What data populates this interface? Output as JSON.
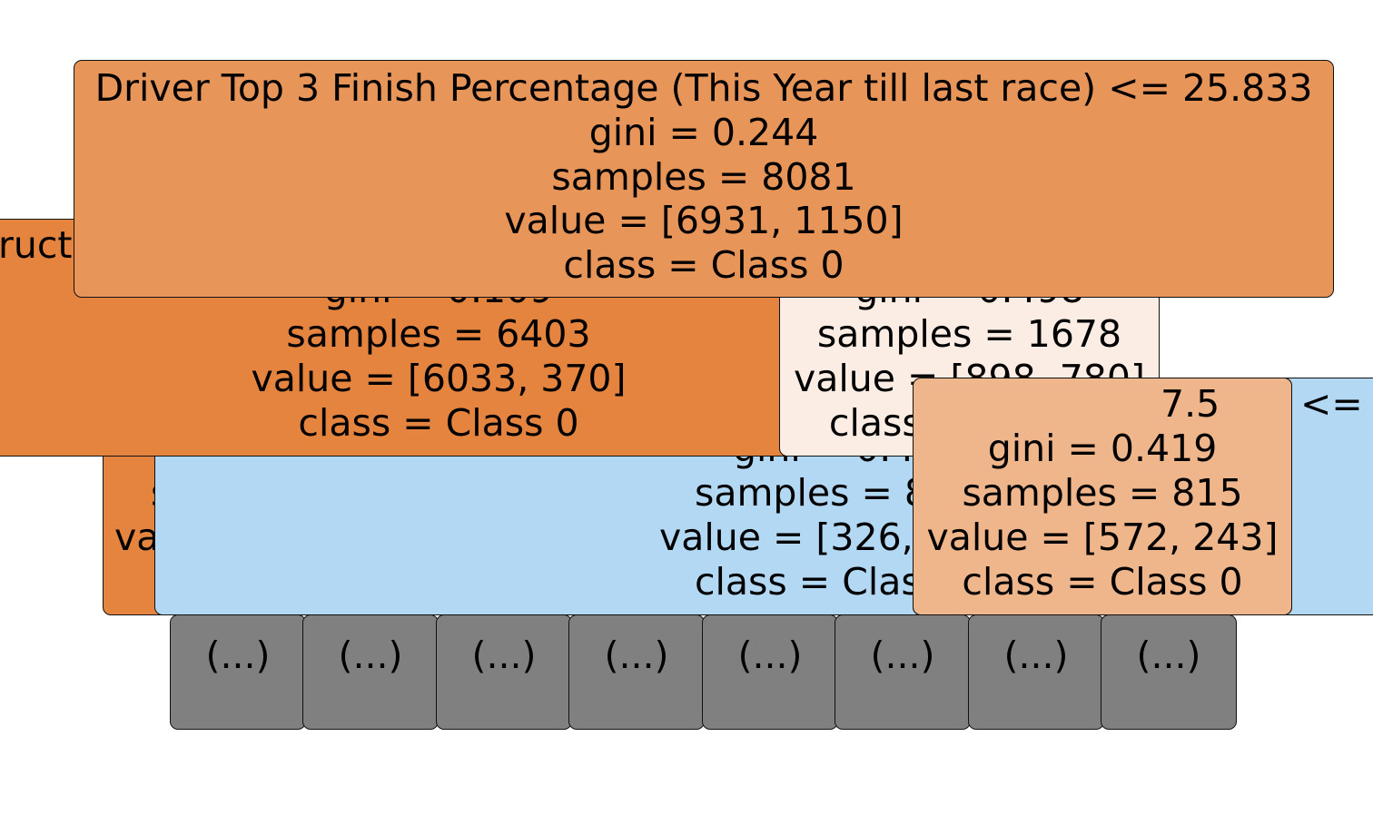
{
  "colors": {
    "root": "#e89559",
    "strong_class0": "#e5843f",
    "light_class0": "#fcede4",
    "mid_class0": "#f0b68b",
    "class1": "#b3d8f4",
    "truncated": "#808080"
  },
  "nodes": {
    "root": {
      "split": "Driver Top 3 Finish Percentage (This Year till last race) <= 25.833",
      "gini": "gini = 0.244",
      "samples": "samples = 8081",
      "value": "value = [6931, 1150]",
      "class": "class = Class 0"
    },
    "left": {
      "split_fragment": "ructo",
      "gini": "gini = 0.109",
      "samples": "samples = 6403",
      "value": "value = [6033, 370]",
      "class": "class = Class 0"
    },
    "right": {
      "gini": "gini = 0.498",
      "samples": "samples = 1678",
      "value": "value = [898, 780]",
      "class": "class = Class 0"
    },
    "left_left": {
      "samples_fragment": "s",
      "value_fragment": "va"
    },
    "left_right": {
      "gini": "gini = 0.4",
      "samples": "samples = 8",
      "value": "value = [326,",
      "class": "class = Clas"
    },
    "right_left": {
      "split_fragment": "7.5",
      "gini": "gini = 0.419",
      "samples": "samples = 815",
      "value": "value = [572, 243]",
      "class": "class = Class 0"
    },
    "right_right": {
      "split_fragment": "<="
    }
  },
  "leaves": [
    "(...)",
    "(...)",
    "(...)",
    "(...)",
    "(...)",
    "(...)",
    "(...)",
    "(...)"
  ]
}
